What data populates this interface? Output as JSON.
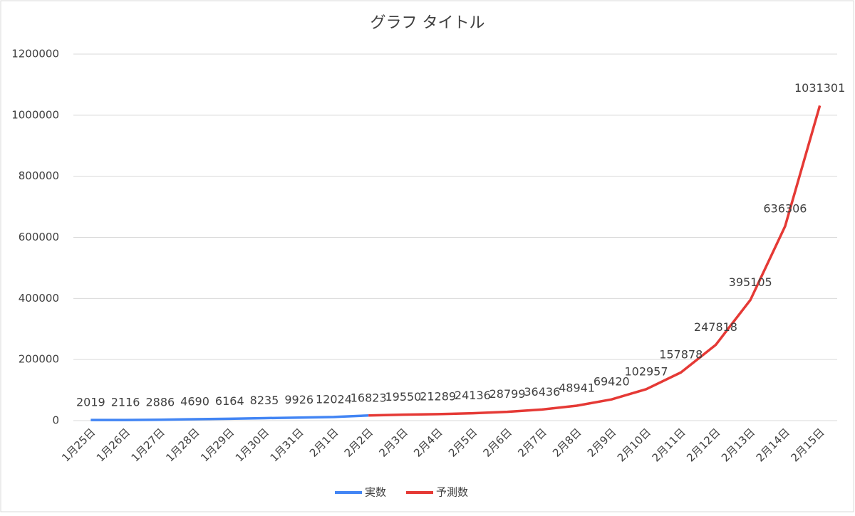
{
  "chart_data": {
    "type": "line",
    "title": "グラフ タイトル",
    "categories": [
      "1月25日",
      "1月26日",
      "1月27日",
      "1月28日",
      "1月29日",
      "1月30日",
      "1月31日",
      "2月1日",
      "2月2日",
      "2月3日",
      "2月4日",
      "2月5日",
      "2月6日",
      "2月7日",
      "2月8日",
      "2月9日",
      "2月10日",
      "2月11日",
      "2月12日",
      "2月13日",
      "2月14日",
      "2月15日"
    ],
    "series": [
      {
        "name": "実数",
        "color": "#4285f4",
        "values": [
          2019,
          2116,
          2886,
          4690,
          6164,
          8235,
          9926,
          12024,
          16823,
          null,
          null,
          null,
          null,
          null,
          null,
          null,
          null,
          null,
          null,
          null,
          null,
          null
        ]
      },
      {
        "name": "予測数",
        "color": "#e53935",
        "values": [
          null,
          null,
          null,
          null,
          null,
          null,
          null,
          null,
          16823,
          19550,
          21289,
          24136,
          28799,
          36436,
          48941,
          69420,
          102957,
          157878,
          247818,
          395105,
          636306,
          1031301
        ]
      }
    ],
    "ylim": [
      0,
      1200000
    ],
    "yticks": [
      0,
      200000,
      400000,
      600000,
      800000,
      1000000,
      1200000
    ],
    "grid": true,
    "legend": "bottom"
  }
}
